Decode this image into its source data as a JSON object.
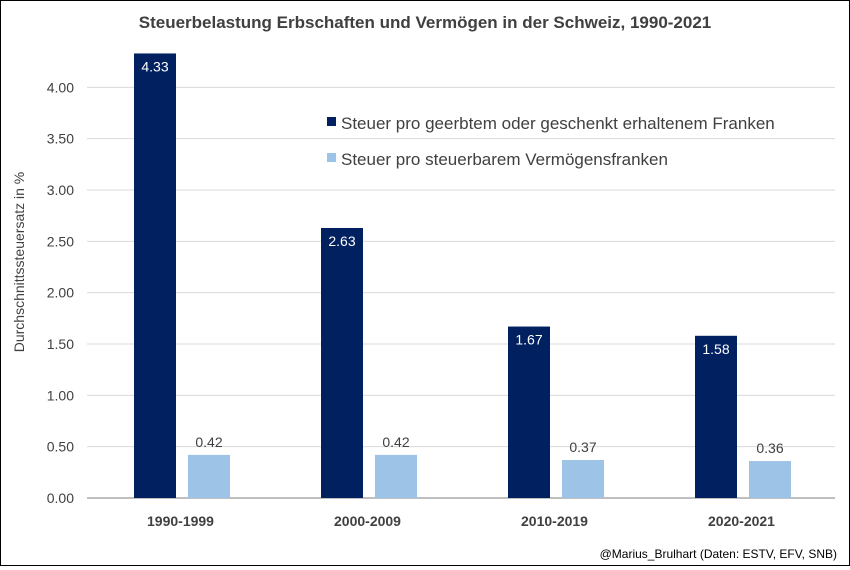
{
  "chart_data": {
    "type": "bar",
    "title": "Steuerbelastung Erbschaften und Vermögen in der Schweiz, 1990-2021",
    "ylabel": "Durchschnittssteuersatz  in %",
    "xlabel": "",
    "categories": [
      "1990-1999",
      "2000-2009",
      "2010-2019",
      "2020-2021"
    ],
    "series": [
      {
        "name": "Steuer pro geerbtem oder geschenkt erhaltenem Franken",
        "color": "#002060",
        "values": [
          4.33,
          2.63,
          1.67,
          1.58
        ],
        "labels": [
          "4.33",
          "2.63",
          "1.67",
          "1.58"
        ]
      },
      {
        "name": "Steuer pro steuerbarem Vermögensfranken",
        "color": "#9DC3E6",
        "values": [
          0.42,
          0.42,
          0.37,
          0.36
        ],
        "labels": [
          "0.42",
          "0.42",
          "0.37",
          "0.36"
        ]
      }
    ],
    "ylim": [
      0,
      4.5
    ],
    "yticks": [
      "0.00",
      "0.50",
      "1.00",
      "1.50",
      "2.00",
      "2.50",
      "3.00",
      "3.50",
      "4.00"
    ],
    "grid": true,
    "legend": "top-right",
    "source": "@Marius_Brulhart (Daten: ESTV, EFV, SNB)"
  }
}
